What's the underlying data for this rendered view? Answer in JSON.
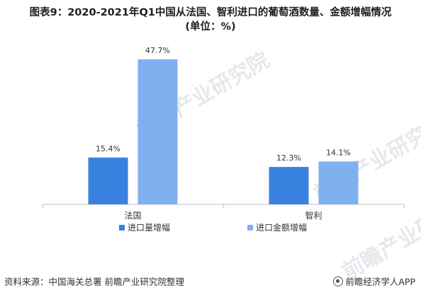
{
  "title": {
    "line1": "图表9：2020-2021年Q1中国从法国、智利进口的葡萄酒数量、金额增幅情况",
    "line2": "(单位：%)"
  },
  "watermark": "前瞻产业研究院",
  "footer": {
    "source": "资料来源：中国海关总署 前瞻产业研究院整理",
    "brand": "前瞻经济学人APP"
  },
  "colors": {
    "series1": "#3a82e0",
    "series2": "#7fb0f0"
  },
  "chart_data": {
    "type": "bar",
    "categories": [
      "法国",
      "智利"
    ],
    "series": [
      {
        "name": "进口量增幅",
        "values": [
          15.4,
          12.3
        ],
        "labels": [
          "15.4%",
          "12.3%"
        ]
      },
      {
        "name": "进口金额增幅",
        "values": [
          47.7,
          14.1
        ],
        "labels": [
          "47.7%",
          "14.1%"
        ]
      }
    ],
    "ylim": [
      0,
      50
    ],
    "grid": false,
    "legend_position": "bottom"
  }
}
